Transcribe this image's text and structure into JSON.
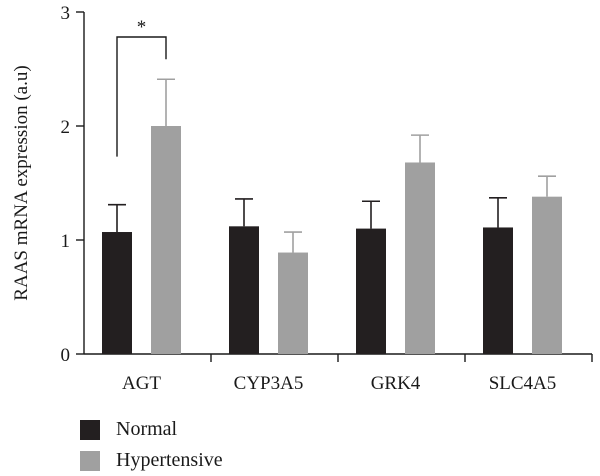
{
  "chart_data": {
    "type": "bar",
    "categories": [
      "AGT",
      "CYP3A5",
      "GRK4",
      "SLC4A5"
    ],
    "series": [
      {
        "name": "Normal",
        "color": "#231f20",
        "values": [
          1.07,
          1.12,
          1.1,
          1.11
        ],
        "errors": [
          0.24,
          0.24,
          0.24,
          0.26
        ]
      },
      {
        "name": "Hypertensive",
        "color": "#a0a0a0",
        "values": [
          2.0,
          0.89,
          1.68,
          1.38
        ],
        "errors": [
          0.41,
          0.18,
          0.24,
          0.18
        ]
      }
    ],
    "xlabel": "",
    "ylabel": "RAAS mRNA expression (a.u)",
    "ylim": [
      0,
      3
    ],
    "yticks": [
      "0",
      "1",
      "2",
      "3"
    ],
    "significance": {
      "category": "AGT",
      "label": "*"
    },
    "legend_position": "bottom-left"
  }
}
